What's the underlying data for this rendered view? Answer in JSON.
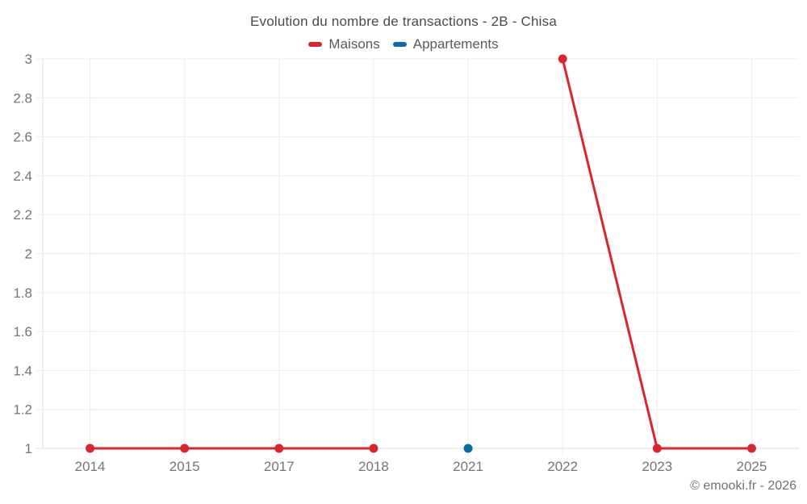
{
  "title": "Evolution du nombre de transactions - 2B - Chisa",
  "legend": [
    {
      "label": "Maisons",
      "color": "#d9262c"
    },
    {
      "label": "Appartements",
      "color": "#0d6ba8"
    }
  ],
  "footer": "© emooki.fr - 2026",
  "colors": {
    "background": "#ffffff",
    "grid": "#ebebeb",
    "axis": "#dddddd",
    "tick_text": "#757575",
    "title_text": "#4a4a4a",
    "legend_text": "#5a5a5a",
    "footer_text": "#717171",
    "maisons": "#d9262c",
    "appartements": "#0d6ba8"
  },
  "chart_data": {
    "type": "line",
    "title": "Evolution du nombre de transactions - 2B - Chisa",
    "xlabel": "",
    "ylabel": "",
    "categories": [
      "2014",
      "2015",
      "2017",
      "2018",
      "2021",
      "2022",
      "2023",
      "2025"
    ],
    "series": [
      {
        "name": "Maisons",
        "color": "#d9262c",
        "values": [
          1,
          1,
          1,
          1,
          null,
          3,
          1,
          1
        ]
      },
      {
        "name": "Appartements",
        "color": "#0d6ba8",
        "values": [
          null,
          null,
          null,
          null,
          1,
          null,
          null,
          null
        ]
      }
    ],
    "ylim": [
      1,
      3
    ],
    "yticks": [
      1,
      1.2,
      1.4,
      1.6,
      1.8,
      2,
      2.2,
      2.4,
      2.6,
      2.8,
      3
    ],
    "ytick_labels": [
      "1",
      "1.2",
      "1.4",
      "1.6",
      "1.8",
      "2",
      "2.2",
      "2.4",
      "2.6",
      "2.8",
      "3"
    ],
    "grid": true,
    "legend_position": "top",
    "notes": "Maisons line has a gap at 2021; Appartements is a single isolated point at 2021"
  }
}
